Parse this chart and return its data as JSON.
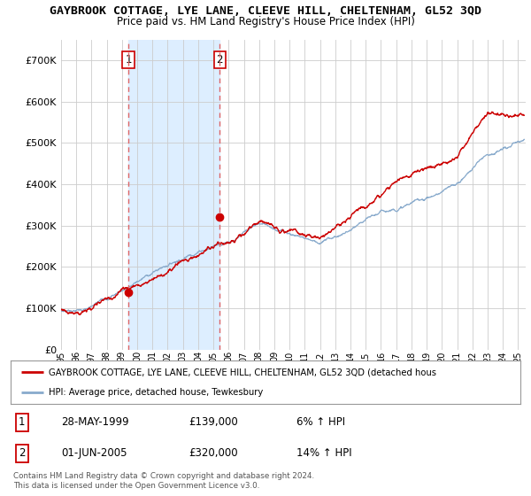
{
  "title": "GAYBROOK COTTAGE, LYE LANE, CLEEVE HILL, CHELTENHAM, GL52 3QD",
  "subtitle": "Price paid vs. HM Land Registry's House Price Index (HPI)",
  "title_fontsize": 9.5,
  "subtitle_fontsize": 8.5,
  "ytick_values": [
    0,
    100000,
    200000,
    300000,
    400000,
    500000,
    600000,
    700000
  ],
  "ylim": [
    0,
    750000
  ],
  "xlim_start": 1995.0,
  "xlim_end": 2025.5,
  "sale1_x": 1999.42,
  "sale1_y": 139000,
  "sale1_label": "1",
  "sale2_x": 2005.42,
  "sale2_y": 320000,
  "sale2_label": "2",
  "red_line_color": "#cc0000",
  "blue_line_color": "#88aacc",
  "dashed_line_color": "#dd6666",
  "shade_color": "#ddeeff",
  "legend_text1": "GAYBROOK COTTAGE, LYE LANE, CLEEVE HILL, CHELTENHAM, GL52 3QD (detached hous",
  "legend_text2": "HPI: Average price, detached house, Tewkesbury",
  "table_rows": [
    {
      "num": "1",
      "date": "28-MAY-1999",
      "price": "£139,000",
      "hpi": "6% ↑ HPI"
    },
    {
      "num": "2",
      "date": "01-JUN-2005",
      "price": "£320,000",
      "hpi": "14% ↑ HPI"
    }
  ],
  "footnote": "Contains HM Land Registry data © Crown copyright and database right 2024.\nThis data is licensed under the Open Government Licence v3.0.",
  "background_color": "#ffffff"
}
